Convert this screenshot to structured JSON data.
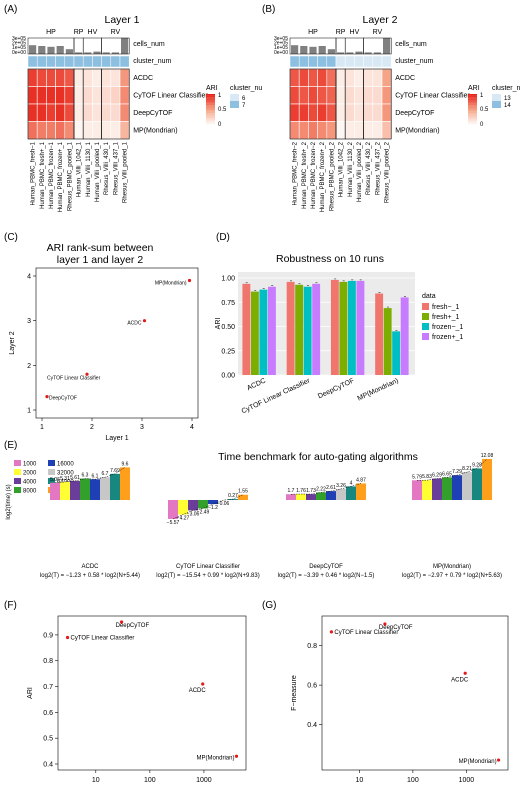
{
  "panels": {
    "A": {
      "label": "(A)",
      "title": "Layer 1"
    },
    "B": {
      "label": "(B)",
      "title": "Layer 2"
    },
    "C": {
      "label": "(C)",
      "title_line1": "ARI rank-sum between",
      "title_line2": "layer 1 and layer 2"
    },
    "D": {
      "label": "(D)",
      "title": "Robustness on 10 runs"
    },
    "E": {
      "label": "(E)",
      "title": "Time benchmark for auto-gating algorithms"
    },
    "F": {
      "label": "(F)"
    },
    "G": {
      "label": "(G)"
    }
  },
  "heatmap": {
    "groups": [
      "HP",
      "RP",
      "HV",
      "RV"
    ],
    "rows": [
      "cells_num",
      "cluster_num",
      "ACDC",
      "CyTOF Linear Classifier",
      "DeepCyTOF",
      "MP(Mondrian)"
    ],
    "bar_ticks": [
      "3e+05",
      "2e+05",
      "1e+05",
      "0e+00"
    ],
    "ari_legend_title": "ARI",
    "ari_legend_ticks": [
      "1",
      "0.5",
      "0"
    ],
    "cluster_legend_title": "cluster_nu",
    "cluster_legend_title_B": "cluster_num",
    "cluster_values_A": [
      "6",
      "7"
    ],
    "cluster_values_B": [
      "13",
      "14"
    ],
    "colors": {
      "high": "#e8231a",
      "mid": "#f6a487",
      "low": "#ffffff",
      "cluster_light": "#d8e8f4",
      "cluster_dark": "#8cbfe0",
      "bar": "#808080"
    },
    "samples_A": [
      "Human_PBMC_fresh−1",
      "Human_PBMC_fresh+_1",
      "Human_PBMC_frozen−1",
      "Human_PBMC_frozen+_1",
      "Rhesus_PBMC_pooled_1",
      "Human_Villi_1042_1",
      "Human_Villi_1130_1",
      "Human_Villi_pooled_1",
      "Rhesus_Villi_430_1",
      "Rhesus_Villi_437_1",
      "Rhesus_Villi_pooled_1"
    ],
    "samples_B": [
      "Human_PBMC_fresh−2",
      "Human_PBMC_fresh+_2",
      "Human_PBMC_frozen−2",
      "Human_PBMC_frozen+_2",
      "Rhesus_PBMC_pooled_2",
      "Human_Villi_1042_2",
      "Human_Villi_1130_2",
      "Human_Villi_pooled_2",
      "Rhesus_Villi_430_2",
      "Rhesus_Villi_437_2",
      "Rhesus_Villi_pooled_2"
    ]
  },
  "chart_data": [
    {
      "panel": "A",
      "type": "heatmap",
      "title": "Layer 1",
      "cells_num": [
        0.55,
        0.5,
        0.45,
        0.5,
        0.3,
        0.1,
        0.1,
        0.15,
        0.1,
        0.1,
        1.0
      ],
      "cluster_num": [
        7,
        7,
        7,
        7,
        7,
        7,
        7,
        7,
        7,
        7,
        7
      ],
      "ari": [
        [
          0.9,
          0.85,
          0.85,
          0.85,
          0.8,
          0.1,
          0.15,
          0.1,
          0.15,
          0.15,
          0.55
        ],
        [
          0.95,
          0.95,
          0.95,
          0.95,
          0.9,
          0.1,
          0.2,
          0.15,
          0.2,
          0.25,
          0.6
        ],
        [
          0.95,
          0.95,
          0.9,
          0.95,
          0.85,
          0.1,
          0.2,
          0.15,
          0.2,
          0.2,
          0.6
        ],
        [
          0.7,
          0.65,
          0.65,
          0.7,
          0.6,
          0.05,
          0.1,
          0.1,
          0.1,
          0.1,
          0.4
        ]
      ]
    },
    {
      "panel": "B",
      "type": "heatmap",
      "title": "Layer 2",
      "cells_num": [
        0.55,
        0.5,
        0.45,
        0.5,
        0.3,
        0.1,
        0.1,
        0.15,
        0.1,
        0.1,
        1.0
      ],
      "cluster_num": [
        14,
        14,
        14,
        14,
        14,
        13,
        13,
        13,
        13,
        13,
        13
      ],
      "ari": [
        [
          0.8,
          0.85,
          0.8,
          0.85,
          0.7,
          0.1,
          0.15,
          0.1,
          0.15,
          0.15,
          0.5
        ],
        [
          0.85,
          0.8,
          0.85,
          0.8,
          0.75,
          0.1,
          0.2,
          0.15,
          0.2,
          0.2,
          0.55
        ],
        [
          0.9,
          0.9,
          0.85,
          0.9,
          0.8,
          0.1,
          0.2,
          0.15,
          0.2,
          0.2,
          0.55
        ],
        [
          0.6,
          0.6,
          0.65,
          0.6,
          0.55,
          0.05,
          0.1,
          0.1,
          0.1,
          0.1,
          0.35
        ]
      ]
    },
    {
      "panel": "C",
      "type": "scatter",
      "title": "ARI rank-sum between layer 1 and layer 2",
      "xlabel": "Layer 1",
      "ylabel": "Layer 2",
      "xlim": [
        1,
        4
      ],
      "ylim": [
        1,
        4
      ],
      "xticks": [
        1,
        2,
        3,
        4
      ],
      "yticks": [
        1,
        2,
        3,
        4
      ],
      "points": [
        {
          "label": "MP(Mondrian)",
          "x": 3.95,
          "y": 3.9
        },
        {
          "label": "ACDC",
          "x": 3.05,
          "y": 3.0
        },
        {
          "label": "CyTOF Linear Classifier",
          "x": 1.9,
          "y": 1.8
        },
        {
          "label": "DeepCyTOF",
          "x": 1.1,
          "y": 1.3
        }
      ]
    },
    {
      "panel": "D",
      "type": "bar",
      "title": "Robustness on 10 runs",
      "ylabel": "ARI",
      "ylim": [
        0,
        1
      ],
      "yticks": [
        "0.00",
        "0.25",
        "0.50",
        "0.75",
        "1.00"
      ],
      "categories": [
        "ACDC",
        "CyTOF Linear Classifier",
        "DeepCyTOF",
        "MP(Mondrian)"
      ],
      "legend_title": "data",
      "series": [
        {
          "name": "fresh−_1",
          "color": "#f0766d",
          "values": [
            0.94,
            0.96,
            0.98,
            0.84
          ]
        },
        {
          "name": "fresh+_1",
          "color": "#7cae00",
          "values": [
            0.86,
            0.93,
            0.96,
            0.69
          ]
        },
        {
          "name": "frozen−_1",
          "color": "#00bfc4",
          "values": [
            0.88,
            0.91,
            0.97,
            0.45
          ]
        },
        {
          "name": "frozen+_1",
          "color": "#c77cff",
          "values": [
            0.91,
            0.94,
            0.97,
            0.8
          ]
        }
      ]
    },
    {
      "panel": "E",
      "type": "bar",
      "title": "Time benchmark for auto-gating algorithms",
      "ylabel": "log2(time) (s)",
      "legend": [
        {
          "name": "1000",
          "color": "#e377c2"
        },
        {
          "name": "2000",
          "color": "#ffff33"
        },
        {
          "name": "4000",
          "color": "#6a3d9a"
        },
        {
          "name": "8000",
          "color": "#33a02c"
        },
        {
          "name": "16000",
          "color": "#1f3fb4"
        },
        {
          "name": "32000",
          "color": "#c7c7c7"
        },
        {
          "name": "64000",
          "color": "#17877f"
        },
        {
          "name": "128000",
          "color": "#ff9f1c"
        }
      ],
      "groups": [
        {
          "name": "ACDC",
          "formula": "log2(T) = −1.23 + 0.58 * log2(N+5.44)",
          "values": [
            5.06,
            5.31,
            5.61,
            6.3,
            6.1,
            6.7,
            7.69,
            9.6
          ],
          "labels": [
            "5.06",
            "5.31",
            "5.61",
            "6.3",
            "6.1",
            "6.7",
            "7.69",
            "9.6"
          ]
        },
        {
          "name": "CyTOF Linear Classifier",
          "formula": "log2(T) = −15.54 + 0.99 * log2(N+9.83)",
          "values": [
            -5.57,
            -4.27,
            -3.06,
            -2.49,
            -1.2,
            -0.06,
            0.27,
            1.55
          ],
          "labels": [
            "−5.57",
            "−4.27",
            "−3.06",
            "−2.49",
            "−1.2",
            "−0.06",
            "0.27",
            "1.55"
          ]
        },
        {
          "name": "DeepCyTOF",
          "formula": "log2(T) = −3.39 + 0.46 * log2(N−1.5)",
          "values": [
            1.7,
            1.76,
            1.73,
            2.22,
            2.61,
            3.26,
            4.0,
            4.87
          ],
          "labels": [
            "1.7",
            "1.76",
            "1.73",
            "2.22",
            "2.61",
            "3.26",
            "4",
            "4.87"
          ]
        },
        {
          "name": "MP(Mondrian)",
          "formula": "log2(T) = −2.97 + 0.79 * log2(N+5.63)",
          "values": [
            5.79,
            5.83,
            6.29,
            6.65,
            7.29,
            8.21,
            9.28,
            12.08
          ],
          "labels": [
            "5.79",
            "5.83",
            "6.29",
            "6.65",
            "7.29",
            "8.21",
            "9.28",
            "12.08"
          ]
        }
      ]
    },
    {
      "panel": "F",
      "type": "scatter",
      "xlabel": "Running Time (s)",
      "ylabel": "ARI",
      "xscale": "log",
      "xticks": [
        "10",
        "100",
        "1000"
      ],
      "yticks": [
        "0.4",
        "0.5",
        "0.6",
        "0.7",
        "0.8",
        "0.9"
      ],
      "ylim": [
        0.4,
        0.95
      ],
      "points": [
        {
          "label": "DeepCyTOF",
          "x": 30,
          "y": 0.95
        },
        {
          "label": "CyTOF Linear Classifier",
          "x": 3,
          "y": 0.89
        },
        {
          "label": "ACDC",
          "x": 950,
          "y": 0.71
        },
        {
          "label": "MP(Mondrian)",
          "x": 4000,
          "y": 0.43
        }
      ]
    },
    {
      "panel": "G",
      "type": "scatter",
      "xlabel": "Running Time (s)",
      "ylabel": "F−measure",
      "xscale": "log",
      "xticks": [
        "10",
        "100",
        "1000"
      ],
      "yticks": [
        "0.4",
        "0.6",
        "0.8"
      ],
      "ylim": [
        0.2,
        0.92
      ],
      "points": [
        {
          "label": "DeepCyTOF",
          "x": 30,
          "y": 0.91
        },
        {
          "label": "CyTOF Linear Classifier",
          "x": 3,
          "y": 0.87
        },
        {
          "label": "ACDC",
          "x": 950,
          "y": 0.66
        },
        {
          "label": "MP(Mondrian)",
          "x": 4000,
          "y": 0.22
        }
      ]
    }
  ]
}
